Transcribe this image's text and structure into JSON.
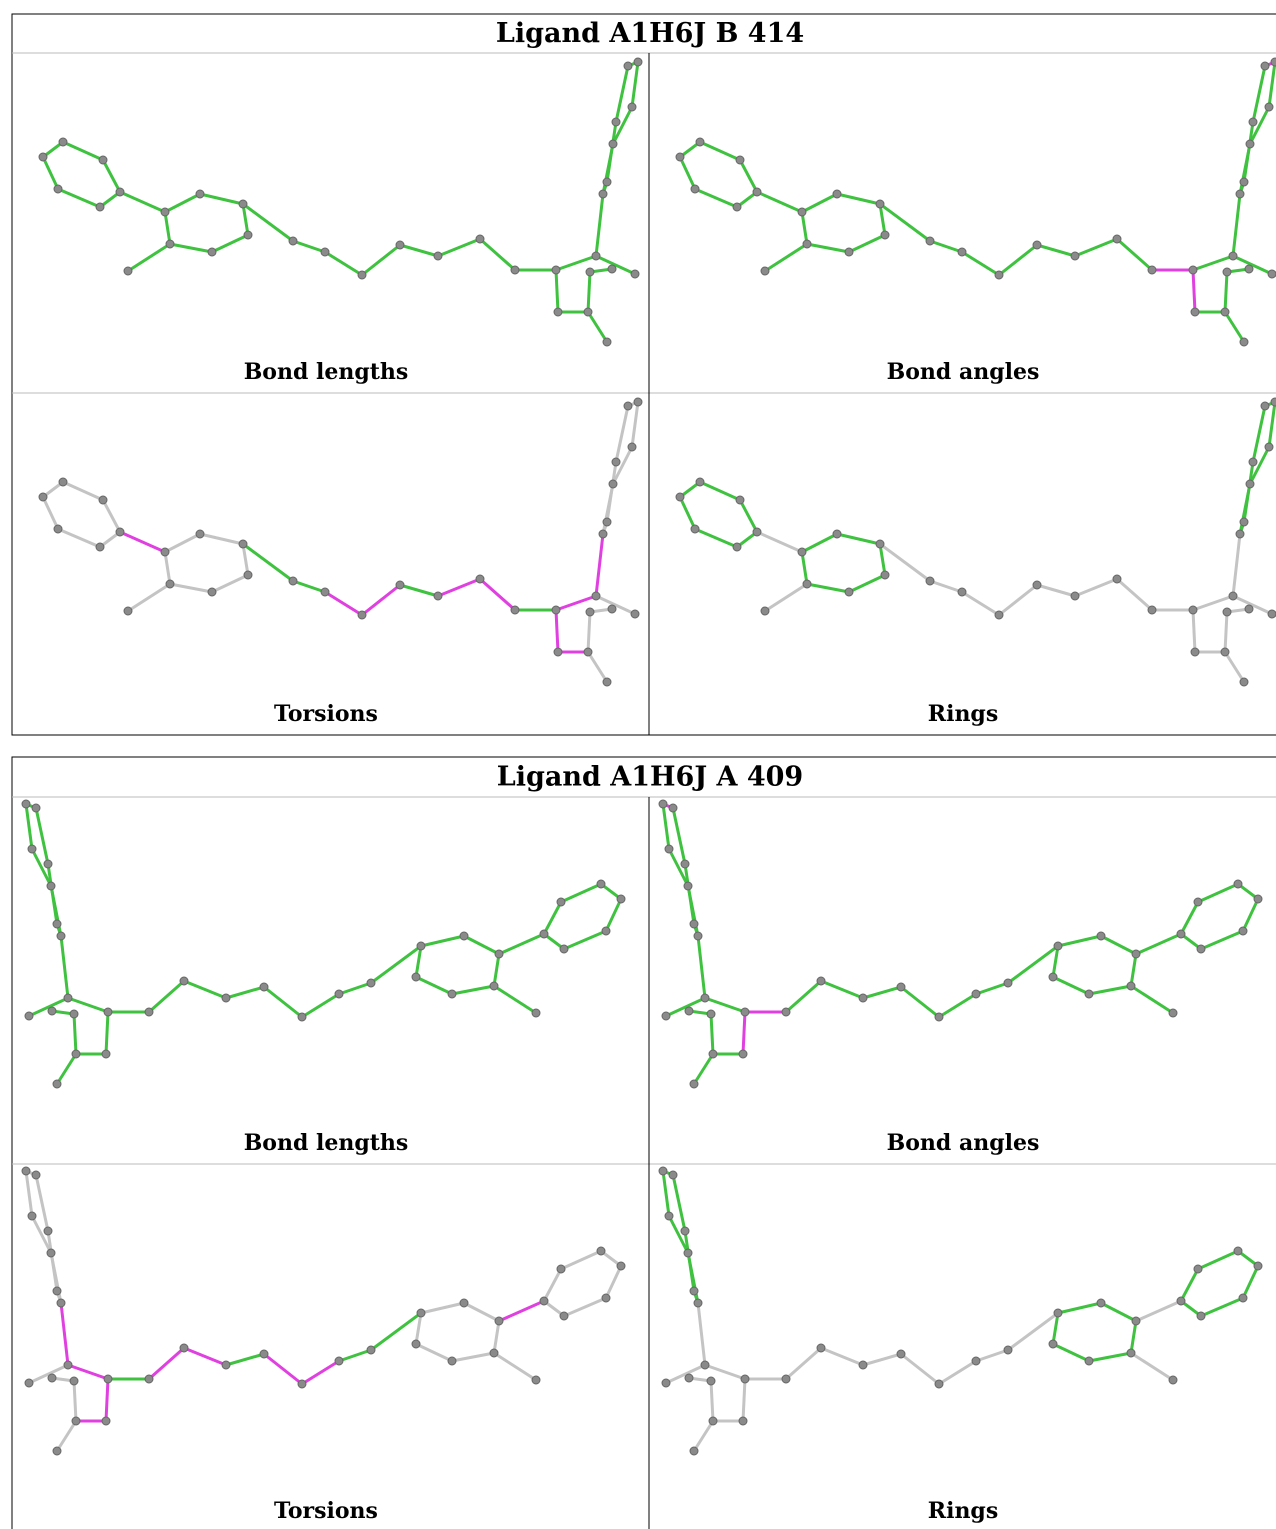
{
  "tables": [
    {
      "title": "Ligand A1H6J B 414",
      "panels": [
        {
          "caption": "Bond lengths"
        },
        {
          "caption": "Bond angles"
        },
        {
          "caption": "Torsions"
        },
        {
          "caption": "Rings"
        }
      ]
    },
    {
      "title": "Ligand A1H6J A 409",
      "panels": [
        {
          "caption": "Bond lengths"
        },
        {
          "caption": "Bond angles"
        },
        {
          "caption": "Torsions"
        },
        {
          "caption": "Rings"
        }
      ]
    }
  ]
}
